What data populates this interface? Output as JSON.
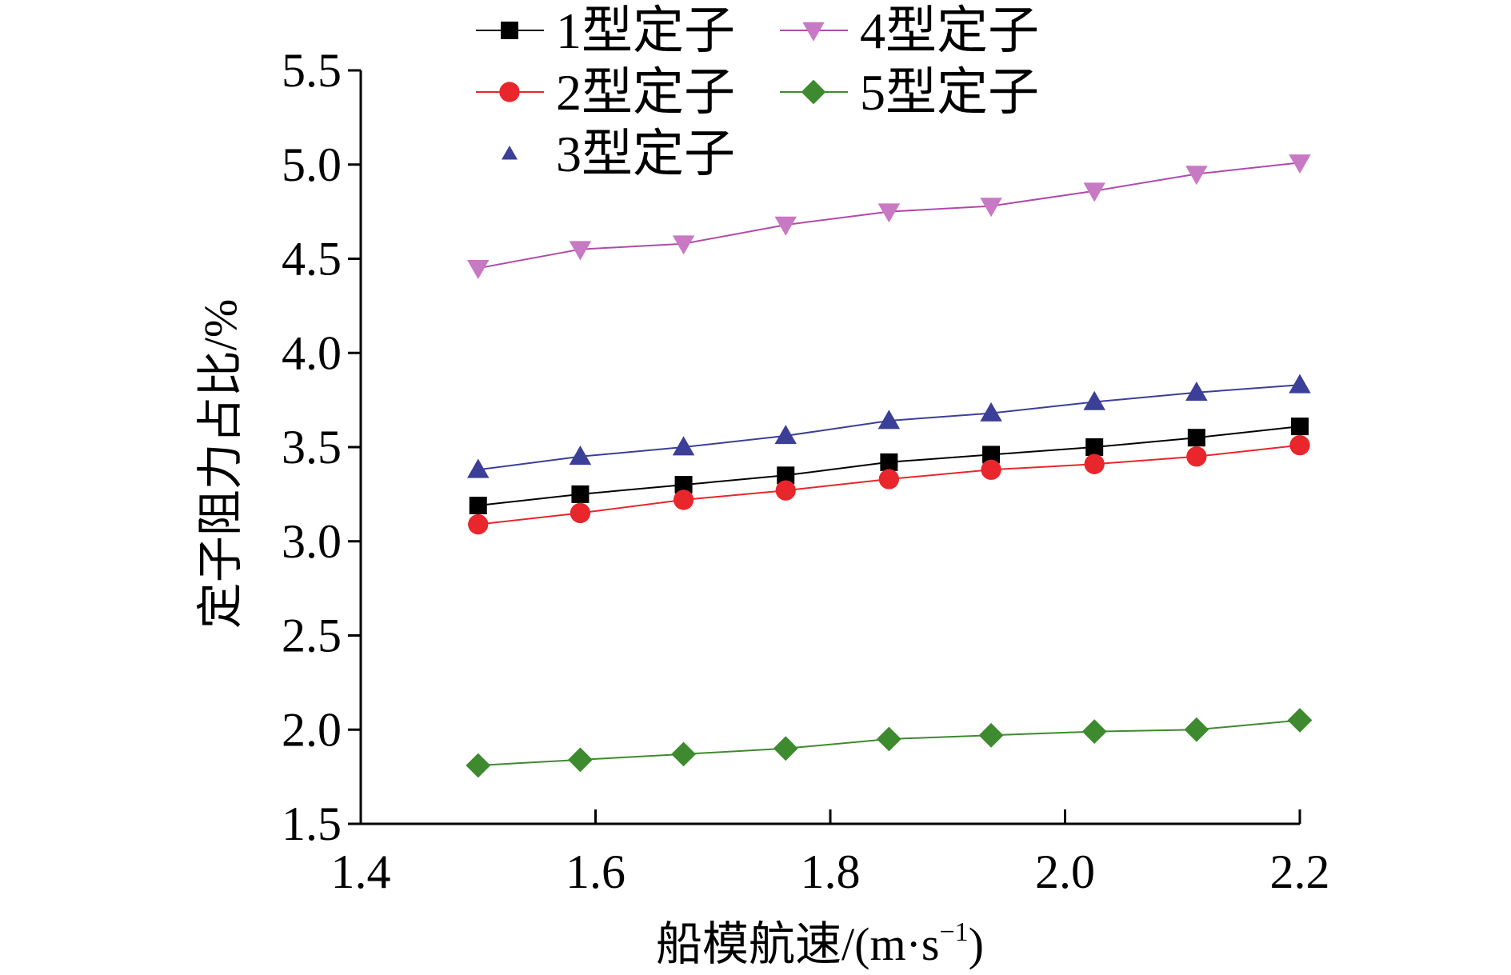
{
  "chart_data": {
    "type": "line",
    "title": "",
    "xlabel": "船模航速/(m·s",
    "xlabel_superscript": "−1",
    "xlabel_suffix": ")",
    "ylabel": "定子阻力占比/%",
    "xlim": [
      1.4,
      2.2
    ],
    "ylim": [
      1.5,
      5.5
    ],
    "xticks": [
      "1.4",
      "1.6",
      "1.8",
      "2.0",
      "2.2"
    ],
    "yticks": [
      "1.5",
      "2.0",
      "2.5",
      "3.0",
      "3.5",
      "4.0",
      "4.5",
      "5.0",
      "5.5"
    ],
    "x": [
      1.5,
      1.587,
      1.675,
      1.762,
      1.85,
      1.937,
      2.025,
      2.112,
      2.2
    ],
    "legend_position": "top",
    "series": [
      {
        "name": "1型定子",
        "marker": "square",
        "color": "#000000",
        "line_color": "#000000",
        "values": [
          3.19,
          3.25,
          3.3,
          3.35,
          3.42,
          3.46,
          3.5,
          3.55,
          3.61
        ]
      },
      {
        "name": "2型定子",
        "marker": "circle",
        "color": "#e8262b",
        "line_color": "#e8262b",
        "values": [
          3.09,
          3.15,
          3.22,
          3.27,
          3.33,
          3.38,
          3.41,
          3.45,
          3.51
        ]
      },
      {
        "name": "3型定子",
        "marker": "triangle-up",
        "color": "#3b3f97",
        "line_color": "#3b3f97",
        "values": [
          3.38,
          3.45,
          3.5,
          3.56,
          3.64,
          3.68,
          3.74,
          3.79,
          3.83
        ]
      },
      {
        "name": "4型定子",
        "marker": "triangle-down",
        "color": "#c879c3",
        "line_color": "#b04aa8",
        "values": [
          4.45,
          4.55,
          4.58,
          4.68,
          4.75,
          4.78,
          4.86,
          4.95,
          5.01
        ]
      },
      {
        "name": "5型定子",
        "marker": "diamond",
        "color": "#3e8a2f",
        "line_color": "#3e8a2f",
        "values": [
          1.81,
          1.84,
          1.87,
          1.9,
          1.95,
          1.97,
          1.99,
          2.0,
          2.05
        ]
      }
    ]
  }
}
